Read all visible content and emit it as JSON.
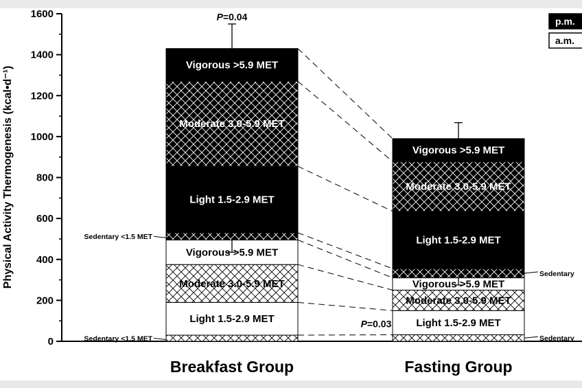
{
  "chart_data": {
    "type": "bar",
    "stacked": true,
    "ylabel": "Physical Activity Thermogenesis (kcal•d⁻¹)",
    "ylim": [
      0,
      1600
    ],
    "yticks": [
      0,
      200,
      400,
      600,
      800,
      1000,
      1200,
      1400,
      1600
    ],
    "grid": false,
    "categories": [
      "Breakfast Group",
      "Fasting Group"
    ],
    "legend": {
      "placement": "top-right",
      "entries": [
        {
          "name": "p.m.",
          "color": "#000000"
        },
        {
          "name": "a.m.",
          "color": "#ffffff"
        }
      ]
    },
    "segments": [
      {
        "category": "Breakfast Group",
        "period": "a.m.",
        "parts": [
          {
            "name": "Sedentary",
            "label": "Sedentary <1.5 MET",
            "label_side": "left-outside",
            "bottom": 0,
            "top": 30,
            "fill": "hatch"
          },
          {
            "name": "Light",
            "label": "Light   1.5-2.9 MET",
            "bottom": 30,
            "top": 190,
            "fill": "white"
          },
          {
            "name": "Moderate",
            "label": "Moderate 3.0-5.9 MET",
            "bottom": 190,
            "top": 375,
            "fill": "hatch"
          },
          {
            "name": "Vigorous",
            "label": "Vigorous    >5.9 MET",
            "bottom": 375,
            "top": 495,
            "fill": "white"
          }
        ]
      },
      {
        "category": "Breakfast Group",
        "period": "p.m.",
        "parts": [
          {
            "name": "Sedentary",
            "label": "Sedentary <1.5 MET",
            "label_side": "left-outside",
            "bottom": 495,
            "top": 530,
            "fill": "black-hatch"
          },
          {
            "name": "Light",
            "label": "Light   1.5-2.9 MET",
            "bottom": 530,
            "top": 855,
            "fill": "black"
          },
          {
            "name": "Moderate",
            "label": "Moderate 3.0-5.9 MET",
            "bottom": 855,
            "top": 1270,
            "fill": "black-hatch"
          },
          {
            "name": "Vigorous",
            "label": "Vigorous    >5.9 MET",
            "bottom": 1270,
            "top": 1430,
            "fill": "black"
          }
        ]
      },
      {
        "category": "Fasting Group",
        "period": "a.m.",
        "parts": [
          {
            "name": "Sedentary",
            "label": "Sedentary",
            "label_side": "right-outside",
            "bottom": 0,
            "top": 32,
            "fill": "hatch"
          },
          {
            "name": "Light",
            "label": "Light   1.5-2.9 MET",
            "bottom": 32,
            "top": 150,
            "fill": "white"
          },
          {
            "name": "Moderate",
            "label": "Moderate 3.0-5.9 MET",
            "bottom": 150,
            "top": 250,
            "fill": "hatch"
          },
          {
            "name": "Vigorous",
            "label": "Vigorous    >5.9 MET",
            "bottom": 250,
            "top": 310,
            "fill": "white"
          }
        ]
      },
      {
        "category": "Fasting Group",
        "period": "p.m.",
        "parts": [
          {
            "name": "Sedentary",
            "label": "Sedentary",
            "label_side": "right-outside",
            "bottom": 310,
            "top": 355,
            "fill": "black-hatch"
          },
          {
            "name": "Light",
            "label": "Light   1.5-2.9 MET",
            "bottom": 355,
            "top": 635,
            "fill": "black"
          },
          {
            "name": "Moderate",
            "label": "Moderate 3.0-5.9 MET",
            "bottom": 635,
            "top": 878,
            "fill": "black-hatch"
          },
          {
            "name": "Vigorous",
            "label": "Vigorous    >5.9 MET",
            "bottom": 878,
            "top": 990,
            "fill": "black"
          }
        ]
      }
    ],
    "error_bars": [
      {
        "category": "Breakfast Group",
        "period": "p.m.",
        "value": 1430,
        "upper": 1550
      },
      {
        "category": "Breakfast Group",
        "period": "a.m.",
        "value": 495,
        "lower": 435
      },
      {
        "category": "Fasting Group",
        "period": "p.m.",
        "value": 990,
        "upper": 1068
      },
      {
        "category": "Fasting Group",
        "period": "a.m.",
        "value": 310,
        "lower": 275
      }
    ],
    "annotations": [
      {
        "text": "P=0.04",
        "italic_prefix": "P",
        "rest": "=0.04",
        "anchor_category": "Breakfast Group",
        "y": 1585
      },
      {
        "text": "P=0.03",
        "italic_prefix": "P",
        "rest": "=0.03",
        "between_categories": true,
        "y": 85
      }
    ]
  }
}
